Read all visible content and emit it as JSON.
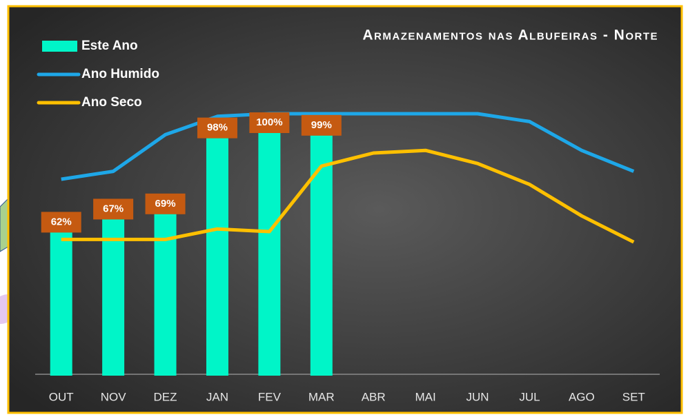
{
  "chart_data": {
    "type": "bar-line",
    "title": "Armazenamentos nas Albufeiras - Norte",
    "categories": [
      "OUT",
      "NOV",
      "DEZ",
      "JAN",
      "FEV",
      "MAR",
      "ABR",
      "MAI",
      "JUN",
      "JUL",
      "AGO",
      "SET"
    ],
    "ylim": [
      0,
      100
    ],
    "series": [
      {
        "name": "Este Ano",
        "type": "bar",
        "color": "#00f5c8",
        "values": [
          62,
          67,
          69,
          98,
          100,
          99,
          null,
          null,
          null,
          null,
          null,
          null
        ],
        "value_labels": [
          "62%",
          "67%",
          "69%",
          "98%",
          "100%",
          "99%",
          null,
          null,
          null,
          null,
          null,
          null
        ]
      },
      {
        "name": "Ano Humido",
        "type": "line",
        "color": "#1ea7e8",
        "values": [
          75,
          78,
          92,
          99,
          100,
          100,
          100,
          100,
          100,
          97,
          86,
          78
        ]
      },
      {
        "name": "Ano Seco",
        "type": "line",
        "color": "#ffc000",
        "values": [
          52,
          52,
          52,
          56,
          55,
          80,
          85,
          86,
          81,
          73,
          61,
          51
        ]
      }
    ]
  }
}
